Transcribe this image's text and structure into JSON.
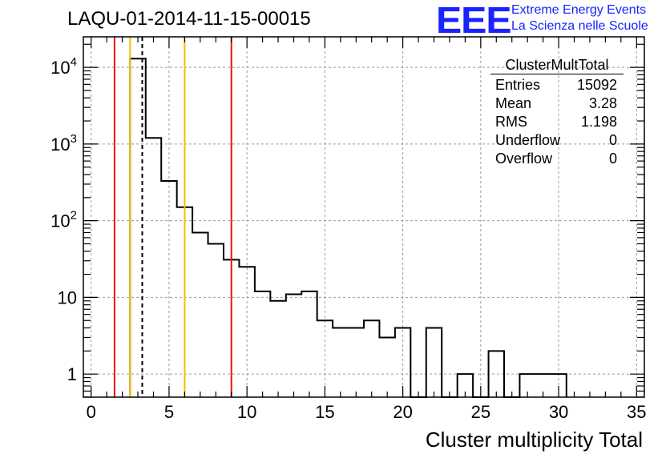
{
  "title": "LAQU-01-2014-11-15-00015",
  "logo": {
    "mark": "EEE",
    "line1": "Extreme Energy Events",
    "line2": "La Scienza nelle Scuole",
    "color": "#1a22ff"
  },
  "stats": {
    "name": "ClusterMultTotal",
    "rows": [
      {
        "label": "Entries",
        "value": "15092"
      },
      {
        "label": "Mean",
        "value": "3.28"
      },
      {
        "label": "RMS",
        "value": "1.198"
      },
      {
        "label": "Underflow",
        "value": "0"
      },
      {
        "label": "Overflow",
        "value": "0"
      }
    ]
  },
  "chart_data": {
    "type": "histogram",
    "title": "LAQU-01-2014-11-15-00015",
    "xlabel": "Cluster multiplicity Total",
    "ylabel": "",
    "xlim": [
      -0.5,
      35.5
    ],
    "ylim": [
      0.5,
      25000
    ],
    "yscale": "log",
    "grid": true,
    "bin_edges": [
      2.5,
      3.5,
      4.5,
      5.5,
      6.5,
      7.5,
      8.5,
      9.5,
      10.5,
      11.5,
      12.5,
      13.5,
      14.5,
      15.5,
      16.5,
      17.5,
      18.5,
      19.5,
      20.5,
      21.5,
      22.5,
      23.5,
      24.5,
      25.5,
      26.5,
      27.5,
      28.5,
      29.5,
      30.5
    ],
    "counts": [
      13000,
      1200,
      330,
      150,
      70,
      50,
      31,
      25,
      12,
      9,
      11,
      12,
      5,
      4,
      4,
      5,
      3,
      4,
      0,
      4,
      0,
      1,
      0,
      2,
      0,
      1,
      1,
      1
    ],
    "xticks": [
      0,
      5,
      10,
      15,
      20,
      25,
      30,
      35
    ],
    "xtick_labels": [
      "0",
      "5",
      "10",
      "15",
      "20",
      "25",
      "30",
      "35"
    ],
    "yticks": [
      1,
      10,
      100,
      1000,
      10000
    ],
    "ytick_labels": [
      {
        "base": "1",
        "exp": ""
      },
      {
        "base": "10",
        "exp": ""
      },
      {
        "base": "10",
        "exp": "2"
      },
      {
        "base": "10",
        "exp": "3"
      },
      {
        "base": "10",
        "exp": "4"
      }
    ],
    "vertical_lines": [
      {
        "x": 1.5,
        "color": "#ee1111",
        "style": "solid"
      },
      {
        "x": 2.5,
        "color": "#f0c000",
        "style": "solid"
      },
      {
        "x": 3.28,
        "color": "#000000",
        "style": "dashed"
      },
      {
        "x": 6.0,
        "color": "#f0c000",
        "style": "solid"
      },
      {
        "x": 9.0,
        "color": "#ee1111",
        "style": "solid"
      }
    ]
  }
}
